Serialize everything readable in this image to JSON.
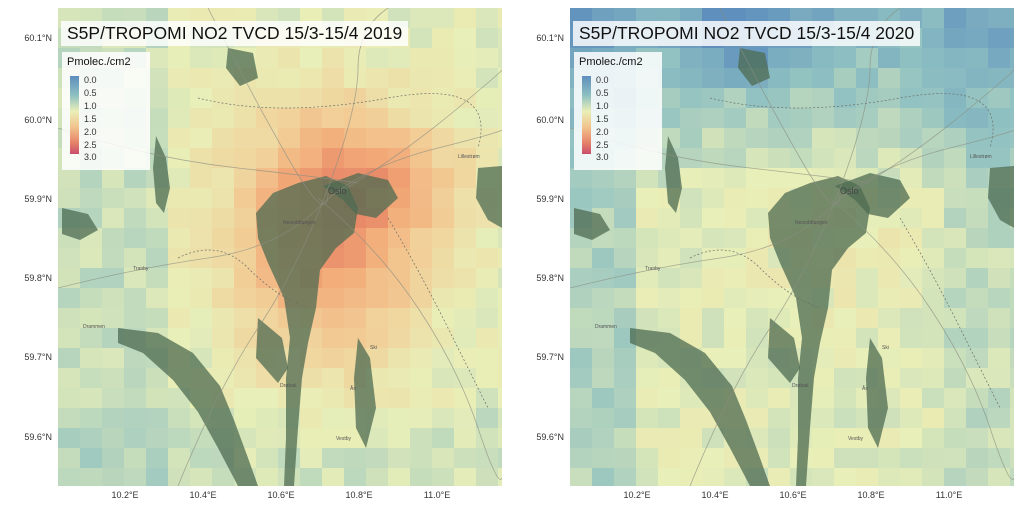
{
  "panels": [
    {
      "title": "S5P/TROPOMI NO2 TVCD 15/3-15/4 2019",
      "legend": {
        "title": "Pmolec./cm2",
        "labels": [
          "0.0",
          "0.5",
          "1.0",
          "1.5",
          "2.0",
          "2.5",
          "3.0"
        ]
      },
      "y_ticks": [
        "60.1°N",
        "60.0°N",
        "59.9°N",
        "59.8°N",
        "59.7°N",
        "59.6°N"
      ],
      "x_ticks": [
        "10.2°E",
        "10.4°E",
        "10.6°E",
        "10.8°E",
        "11.0°E"
      ],
      "places": [
        "Oslo",
        "Nesoddtangen",
        "Lillestrøm",
        "Tranby",
        "Drammen",
        "Ski",
        "Drøbak",
        "Ås",
        "Vestby"
      ]
    },
    {
      "title": "S5P/TROPOMI NO2 TVCD 15/3-15/4 2020",
      "legend": {
        "title": "Pmolec./cm2",
        "labels": [
          "0.0",
          "0.5",
          "1.0",
          "1.5",
          "2.0",
          "2.5",
          "3.0"
        ]
      },
      "y_ticks": [
        "60.1°N",
        "60.0°N",
        "59.9°N",
        "59.8°N",
        "59.7°N",
        "59.6°N"
      ],
      "x_ticks": [
        "10.2°E",
        "10.4°E",
        "10.6°E",
        "10.8°E",
        "11.0°E"
      ],
      "places": [
        "Oslo",
        "Nesoddtangen",
        "Lillestrøm",
        "Tranby",
        "Drammen",
        "Ski",
        "Drøbak",
        "Ås",
        "Vestby"
      ]
    }
  ],
  "colors": {
    "low": "#5e8fbd",
    "mid": "#e9efb8",
    "high": "#c94d6a",
    "water": "#4d6b52"
  }
}
